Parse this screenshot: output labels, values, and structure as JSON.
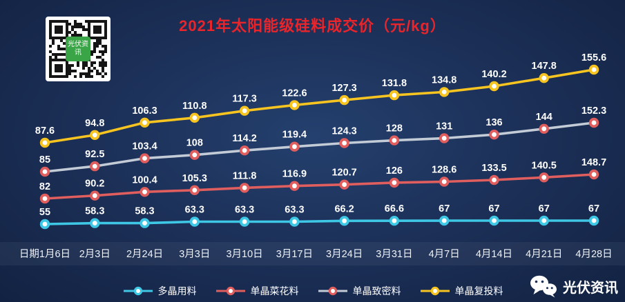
{
  "title": "2021年太阳能级硅料成交价（元/kg）",
  "qr": {
    "label": "光伏资讯"
  },
  "brand": {
    "name": "光伏资讯"
  },
  "chart_data": {
    "type": "line",
    "title": "2021年太阳能级硅料成交价（元/kg）",
    "x": [
      "日期1月6日",
      "2月3日",
      "2月24日",
      "3月3日",
      "3月10日",
      "3月17日",
      "3月24日",
      "3月31日",
      "4月7日",
      "4月14日",
      "4月21日",
      "4月28日"
    ],
    "series": [
      {
        "name": "多晶用料",
        "line_color": "#3fc8e6",
        "marker_ring_color": "#3fc8e6",
        "values": [
          55,
          58.3,
          58.3,
          63.3,
          63.3,
          63.3,
          66.2,
          66.6,
          67,
          67,
          67,
          67
        ]
      },
      {
        "name": "单晶菜花料",
        "line_color": "#e05e5e",
        "marker_ring_color": "#e05e5e",
        "values": [
          82,
          90.2,
          100.4,
          105.3,
          111.8,
          116.9,
          120.7,
          126,
          128.6,
          133.5,
          140.5,
          148.7
        ]
      },
      {
        "name": "单晶致密料",
        "line_color": "#c2cbd6",
        "marker_ring_color": "#e05e5e",
        "values": [
          85,
          92.5,
          103.4,
          108,
          114.2,
          119.4,
          124.3,
          128,
          131,
          136,
          144,
          152.3
        ]
      },
      {
        "name": "单晶复投料",
        "line_color": "#f7c420",
        "marker_ring_color": "#f7c420",
        "values": [
          87.6,
          94.8,
          106.3,
          110.8,
          117.3,
          122.6,
          127.3,
          131.8,
          134.8,
          140.2,
          147.8,
          155.6
        ]
      }
    ],
    "legend_position": "bottom-center",
    "grid": false,
    "background": "#1b2e55",
    "title_color": "#e9252b",
    "label_color": "#ffffff"
  }
}
